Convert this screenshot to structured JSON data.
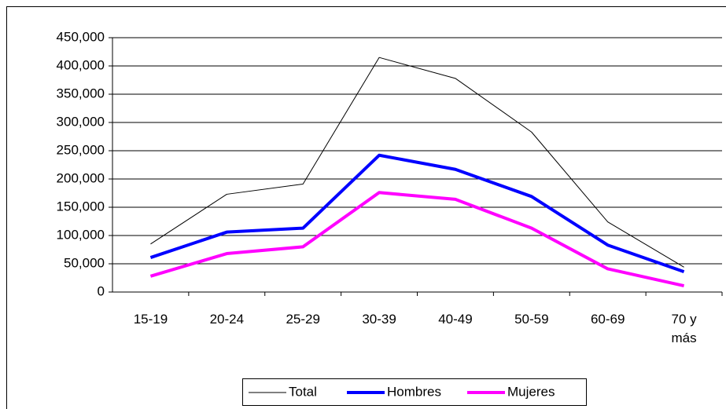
{
  "chart_data": {
    "type": "line",
    "categories": [
      "15-19",
      "20-24",
      "25-29",
      "30-39",
      "40-49",
      "50-59",
      "60-69",
      "70 y más"
    ],
    "series": [
      {
        "name": "Total",
        "color": "#000000",
        "width": 1,
        "values": [
          85000,
          173000,
          191000,
          415000,
          378000,
          283000,
          124000,
          44000
        ]
      },
      {
        "name": "Hombres",
        "color": "#0000ff",
        "width": 4,
        "values": [
          61000,
          106000,
          113000,
          242000,
          217000,
          169000,
          83000,
          36000
        ]
      },
      {
        "name": "Mujeres",
        "color": "#ff00ff",
        "width": 4,
        "values": [
          28000,
          68000,
          80000,
          176000,
          164000,
          113000,
          41000,
          11000
        ]
      }
    ],
    "ylim": [
      0,
      450000
    ],
    "yticks": [
      0,
      {
        "value": 50000,
        "label": "50,000"
      },
      {
        "value": 100000,
        "label": "100,000"
      },
      {
        "value": 150000,
        "label": "150,000"
      },
      {
        "value": 200000,
        "label": "200,000"
      },
      {
        "value": 250000,
        "label": "250,000"
      },
      {
        "value": 300000,
        "label": "300,000"
      },
      {
        "value": 350000,
        "label": "350,000"
      },
      {
        "value": 400000,
        "label": "400,000"
      },
      {
        "value": 450000,
        "label": "450,000"
      }
    ],
    "grid": true,
    "legend": "bottom"
  }
}
